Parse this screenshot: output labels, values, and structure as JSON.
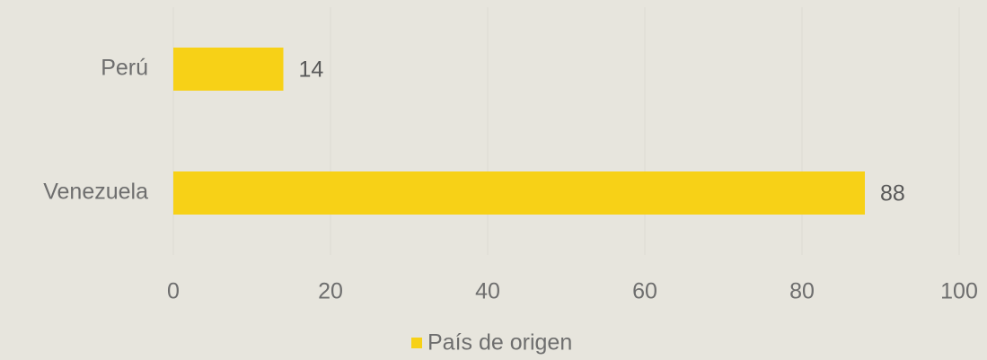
{
  "chart_data": {
    "type": "bar",
    "orientation": "horizontal",
    "categories": [
      "Perú",
      "Venezuela"
    ],
    "series": [
      {
        "name": "País de origen",
        "color": "#f7d117",
        "values": [
          14,
          88
        ]
      }
    ],
    "xlim": [
      0,
      100
    ],
    "xticks": [
      0,
      20,
      40,
      60,
      80,
      100
    ],
    "grid": true,
    "legend": "bottom"
  }
}
